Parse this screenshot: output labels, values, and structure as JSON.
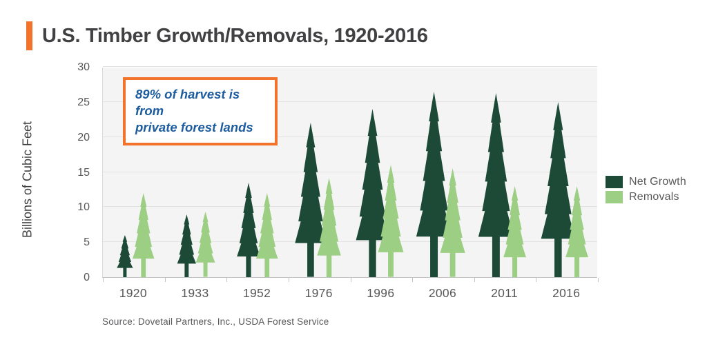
{
  "page": {
    "title": "U.S. Timber Growth/Removals, 1920-2016",
    "accent_color": "#F2732B",
    "background_color": "#ffffff"
  },
  "callout": {
    "line1": "89% of harvest is from",
    "line2": "private forest lands",
    "text_color": "#1D5C9E",
    "border_color": "#F2732B"
  },
  "source": "Source: Dovetail Partners, Inc., USDA Forest Service",
  "legend": {
    "items": [
      {
        "label": "Net Growth",
        "color": "#1C4A37"
      },
      {
        "label": "Removals",
        "color": "#9CCE83"
      }
    ]
  },
  "chart_data": {
    "type": "bar",
    "subtype": "pictorial-tree-bars",
    "title": "U.S. Timber Growth/Removals, 1920-2016",
    "categories": [
      "1920",
      "1933",
      "1952",
      "1976",
      "1996",
      "2006",
      "2011",
      "2016"
    ],
    "series": [
      {
        "name": "Net Growth",
        "color": "#1C4A37",
        "values": [
          6,
          9,
          13.5,
          22,
          24,
          26.5,
          26.3,
          25
        ]
      },
      {
        "name": "Removals",
        "color": "#9CCE83",
        "values": [
          12,
          9.3,
          12,
          14.2,
          16,
          15.5,
          13,
          13
        ]
      }
    ],
    "xlabel": "",
    "ylabel": "Billions of Cubic Feet",
    "ylim": [
      0,
      30
    ],
    "ytick_interval": 5,
    "grid": true,
    "plot_background": "#f4f4f4",
    "legend_position": "right",
    "annotation": "89% of harvest is from private forest lands"
  }
}
